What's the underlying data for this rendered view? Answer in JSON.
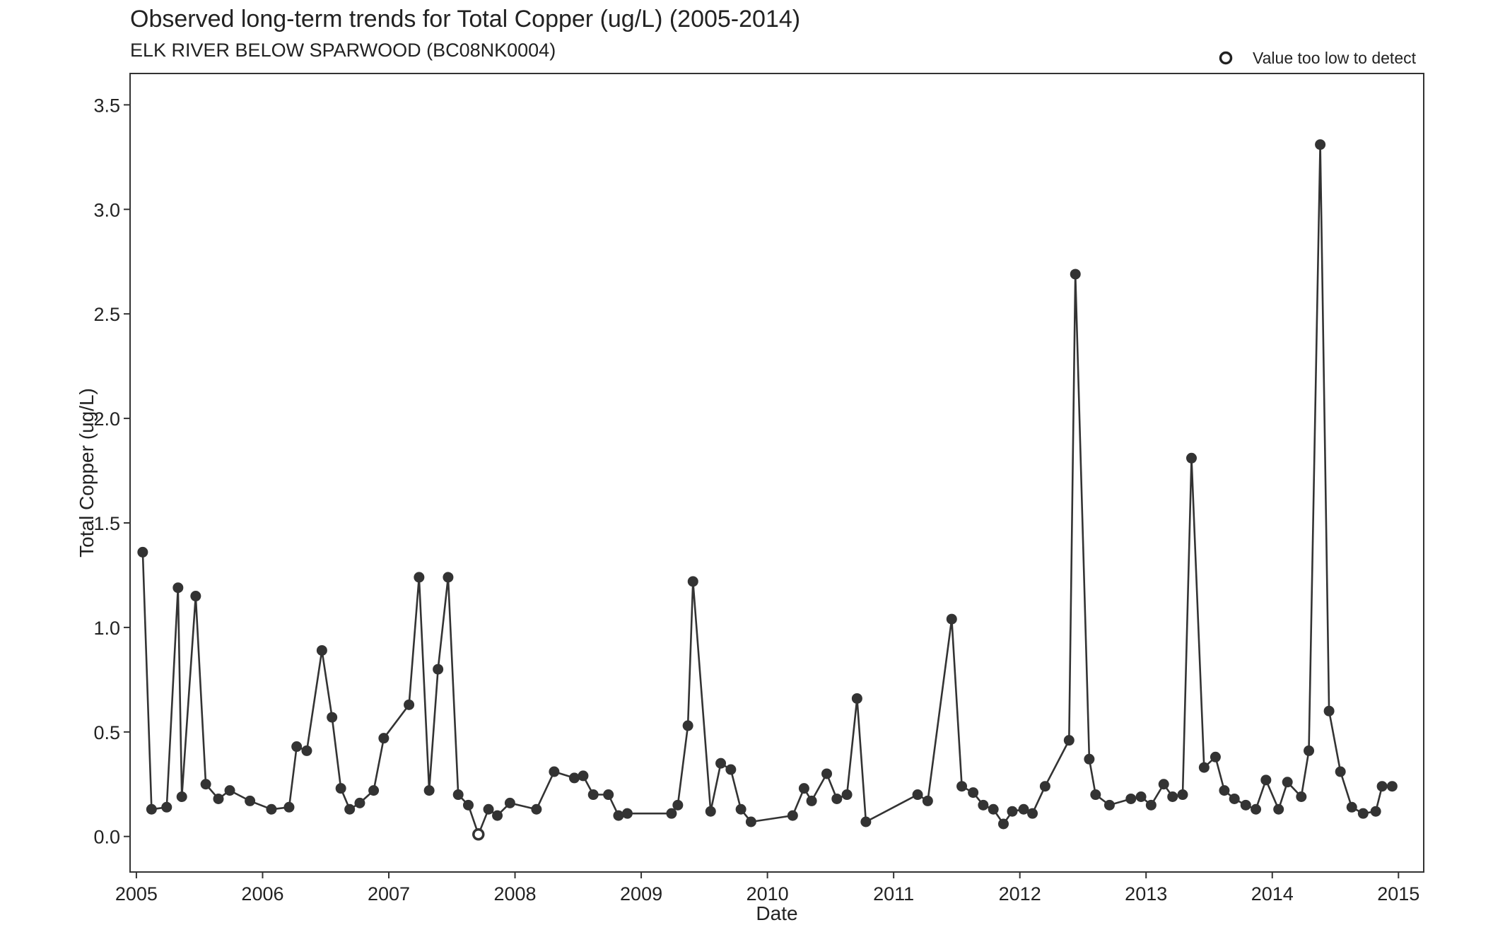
{
  "chart_data": {
    "type": "scatter",
    "title": "Observed long-term trends for Total Copper (ug/L) (2005-2014)",
    "subtitle": "ELK RIVER BELOW SPARWOOD (BC08NK0004)",
    "xlabel": "Date",
    "ylabel": "Total Copper (ug/L)",
    "xlim": [
      2004.95,
      2015.2
    ],
    "ylim": [
      -0.17,
      3.65
    ],
    "xticks": [
      "2005",
      "2006",
      "2007",
      "2008",
      "2009",
      "2010",
      "2011",
      "2012",
      "2013",
      "2014",
      "2015"
    ],
    "yticks": [
      "0.0",
      "0.5",
      "1.0",
      "1.5",
      "2.0",
      "2.5",
      "3.0",
      "3.5"
    ],
    "legend": {
      "position": "top-right",
      "label": "Value too low to detect",
      "marker": "open-circle"
    },
    "grid": false,
    "colors": {
      "line": "#333333",
      "marker": "#333333",
      "background": "#ffffff"
    },
    "series": [
      {
        "connected": true,
        "x": [
          2005.05,
          2005.12,
          2005.24,
          2005.33,
          2005.36,
          2005.47,
          2005.55,
          2005.65,
          2005.74,
          2005.9,
          2006.07,
          2006.21,
          2006.27,
          2006.35,
          2006.47,
          2006.55,
          2006.62,
          2006.69,
          2006.77,
          2006.88,
          2006.96,
          2007.16,
          2007.24,
          2007.32,
          2007.39,
          2007.47,
          2007.55,
          2007.63,
          2007.71,
          2007.79,
          2007.86,
          2007.96,
          2008.17,
          2008.31,
          2008.47,
          2008.54,
          2008.62,
          2008.74,
          2008.82,
          2008.89,
          2009.24,
          2009.29,
          2009.37,
          2009.41,
          2009.55,
          2009.63,
          2009.71,
          2009.79,
          2009.87,
          2010.2,
          2010.29,
          2010.35,
          2010.47,
          2010.55,
          2010.63,
          2010.71,
          2010.78,
          2011.19,
          2011.27,
          2011.46,
          2011.54,
          2011.63,
          2011.71,
          2011.79,
          2011.87,
          2011.94,
          2012.03,
          2012.1,
          2012.2,
          2012.39,
          2012.44,
          2012.55,
          2012.6,
          2012.71,
          2012.88,
          2012.96,
          2013.04,
          2013.14,
          2013.21,
          2013.29,
          2013.36,
          2013.46,
          2013.55,
          2013.62,
          2013.7,
          2013.79,
          2013.87,
          2013.95,
          2014.05,
          2014.12,
          2014.23,
          2014.29,
          2014.38,
          2014.45,
          2014.54,
          2014.63,
          2014.72,
          2014.82,
          2014.87,
          2014.95
        ],
        "y": [
          1.36,
          0.13,
          0.14,
          1.19,
          0.19,
          1.15,
          0.25,
          0.18,
          0.22,
          0.17,
          0.13,
          0.14,
          0.43,
          0.41,
          0.89,
          0.57,
          0.23,
          0.13,
          0.16,
          0.22,
          0.47,
          0.63,
          1.24,
          0.22,
          0.8,
          1.24,
          0.2,
          0.15,
          0.01,
          0.13,
          0.1,
          0.16,
          0.13,
          0.31,
          0.28,
          0.29,
          0.2,
          0.2,
          0.1,
          0.11,
          0.11,
          0.15,
          0.53,
          1.22,
          0.12,
          0.35,
          0.32,
          0.13,
          0.07,
          0.1,
          0.23,
          0.17,
          0.3,
          0.18,
          0.2,
          0.66,
          0.07,
          0.2,
          0.17,
          1.04,
          0.24,
          0.21,
          0.15,
          0.13,
          0.06,
          0.12,
          0.13,
          0.11,
          0.24,
          0.46,
          2.69,
          0.37,
          0.2,
          0.15,
          0.18,
          0.19,
          0.15,
          0.25,
          0.19,
          0.2,
          1.81,
          0.33,
          0.38,
          0.22,
          0.18,
          0.15,
          0.13,
          0.27,
          0.13,
          0.26,
          0.19,
          0.41,
          3.31,
          0.6,
          0.31,
          0.14,
          0.11,
          0.12,
          0.24,
          0.24
        ],
        "below_detection_index": [
          28
        ]
      }
    ]
  }
}
